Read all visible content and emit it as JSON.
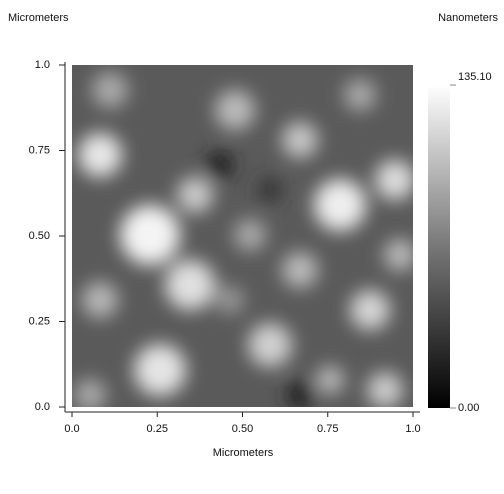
{
  "chart_data": {
    "type": "heatmap",
    "ylabel": "Micrometers",
    "xlabel": "Micrometers",
    "colorbar_label": "Nanometers",
    "xlim": [
      0,
      1
    ],
    "ylim": [
      0,
      1
    ],
    "xticks": [
      {
        "value": 0,
        "label": "0.0"
      },
      0.25,
      {
        "value": 0.5,
        "label": "0.50"
      },
      0.75,
      {
        "value": 1,
        "label": "1.0"
      }
    ],
    "yticks": [
      {
        "value": 0,
        "label": "0.0"
      },
      0.25,
      {
        "value": 0.5,
        "label": "0.50"
      },
      0.75,
      {
        "value": 1,
        "label": "1.0"
      }
    ],
    "colorbar_ticks": [
      {
        "value": 0,
        "label": "0.00"
      },
      {
        "value": 135.1,
        "label": "135.10"
      }
    ],
    "colormap": "gray"
  }
}
